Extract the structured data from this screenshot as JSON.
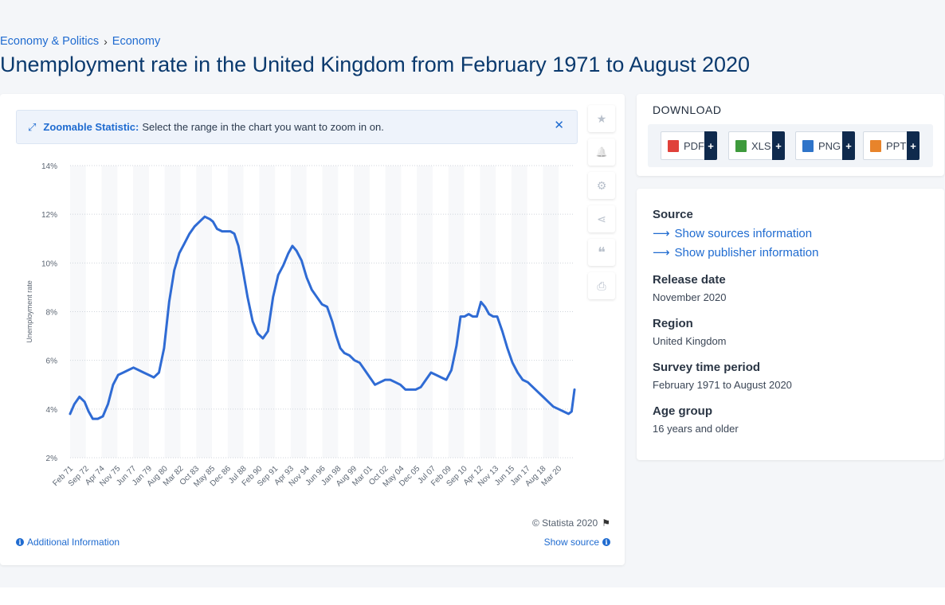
{
  "breadcrumb": {
    "item1": "Economy & Politics",
    "separator": "›",
    "item2": "Economy"
  },
  "page_title": "Unemployment rate in the United Kingdom from February 1971 to August 2020",
  "zoom_banner": {
    "label": "Zoomable Statistic:",
    "text": "Select the range in the chart you want to zoom in on.",
    "close": "✕"
  },
  "toolbar": {
    "icons": [
      "star-icon",
      "bell-icon",
      "gear-icon",
      "share-icon",
      "quote-icon",
      "print-icon"
    ],
    "glyphs": [
      "★",
      "🔔",
      "⚙",
      "⋖",
      "❝",
      "⎙"
    ]
  },
  "copyright": "© Statista 2020",
  "additional_info": "Additional Information",
  "show_source": "Show source",
  "download": {
    "title": "DOWNLOAD",
    "buttons": [
      {
        "label": "PDF",
        "color": "#e0413a"
      },
      {
        "label": "XLS",
        "color": "#3e9a3c"
      },
      {
        "label": "PNG",
        "color": "#2f74c9"
      },
      {
        "label": "PPT",
        "color": "#e8842b"
      }
    ],
    "plus": "+"
  },
  "info": {
    "source_label": "Source",
    "show_sources": "Show sources information",
    "show_publisher": "Show publisher information",
    "release_label": "Release date",
    "release_value": "November 2020",
    "region_label": "Region",
    "region_value": "United Kingdom",
    "period_label": "Survey time period",
    "period_value": "February 1971 to August 2020",
    "age_label": "Age group",
    "age_value": "16 years and older"
  },
  "chart_data": {
    "type": "line",
    "ylabel": "Unemployment rate",
    "xlabel": "",
    "ylim": [
      2,
      14
    ],
    "yticks": [
      "2%",
      "4%",
      "6%",
      "8%",
      "10%",
      "12%",
      "14%"
    ],
    "xlim": [
      1971.083,
      2020.583
    ],
    "xtick_labels": [
      "Feb 71",
      "Sep 72",
      "Apr 74",
      "Nov 75",
      "Jun 77",
      "Jan 79",
      "Aug 80",
      "Mar 82",
      "Oct 83",
      "May 85",
      "Dec 86",
      "Jul 88",
      "Feb 90",
      "Sep 91",
      "Apr 93",
      "Nov 94",
      "Jun 96",
      "Jan 98",
      "Aug 99",
      "Mar 01",
      "Oct 02",
      "May 04",
      "Dec 05",
      "Jul 07",
      "Feb 09",
      "Sep 10",
      "Apr 12",
      "Nov 13",
      "Jun 15",
      "Jan 17",
      "Aug 18",
      "Mar 20"
    ],
    "series_color": "#2f6bd4",
    "grid": "horizontal dotted",
    "x": [
      1971.08,
      1971.5,
      1972.0,
      1972.5,
      1972.9,
      1973.3,
      1973.8,
      1974.3,
      1974.8,
      1975.3,
      1975.8,
      1976.3,
      1976.8,
      1977.3,
      1977.8,
      1978.3,
      1978.8,
      1979.3,
      1979.8,
      1980.3,
      1980.8,
      1981.3,
      1981.8,
      1982.3,
      1982.8,
      1983.3,
      1983.8,
      1984.3,
      1984.8,
      1985.1,
      1985.5,
      1986.0,
      1986.5,
      1986.8,
      1987.2,
      1987.6,
      1988.0,
      1988.5,
      1989.0,
      1989.5,
      1990.0,
      1990.5,
      1991.0,
      1991.5,
      1992.0,
      1992.5,
      1992.9,
      1993.3,
      1993.8,
      1994.3,
      1994.8,
      1995.3,
      1995.8,
      1996.3,
      1996.8,
      1997.2,
      1997.6,
      1998.0,
      1998.5,
      1999.0,
      1999.5,
      2000.0,
      2000.5,
      2001.0,
      2001.5,
      2002.0,
      2002.5,
      2003.0,
      2003.5,
      2004.0,
      2004.5,
      2005.0,
      2005.5,
      2006.0,
      2006.5,
      2007.0,
      2007.5,
      2008.0,
      2008.5,
      2009.0,
      2009.4,
      2009.8,
      2010.2,
      2010.6,
      2011.0,
      2011.4,
      2011.8,
      2012.2,
      2012.6,
      2013.0,
      2013.5,
      2014.0,
      2014.5,
      2015.0,
      2015.5,
      2016.0,
      2016.5,
      2017.0,
      2017.5,
      2018.0,
      2018.5,
      2019.0,
      2019.5,
      2020.0,
      2020.3,
      2020.58
    ],
    "values": [
      3.8,
      4.2,
      4.5,
      4.3,
      3.9,
      3.6,
      3.6,
      3.7,
      4.2,
      5.0,
      5.4,
      5.5,
      5.6,
      5.7,
      5.6,
      5.5,
      5.4,
      5.3,
      5.5,
      6.5,
      8.4,
      9.7,
      10.4,
      10.8,
      11.2,
      11.5,
      11.7,
      11.9,
      11.8,
      11.7,
      11.4,
      11.3,
      11.3,
      11.3,
      11.2,
      10.7,
      9.8,
      8.6,
      7.6,
      7.1,
      6.9,
      7.2,
      8.6,
      9.5,
      9.9,
      10.4,
      10.7,
      10.5,
      10.1,
      9.4,
      8.9,
      8.6,
      8.3,
      8.2,
      7.6,
      7.0,
      6.5,
      6.3,
      6.2,
      6.0,
      5.9,
      5.6,
      5.3,
      5.0,
      5.1,
      5.2,
      5.2,
      5.1,
      5.0,
      4.8,
      4.8,
      4.8,
      4.9,
      5.2,
      5.5,
      5.4,
      5.3,
      5.2,
      5.6,
      6.6,
      7.8,
      7.8,
      7.9,
      7.8,
      7.8,
      8.4,
      8.2,
      7.9,
      7.8,
      7.8,
      7.2,
      6.5,
      5.9,
      5.5,
      5.2,
      5.1,
      4.9,
      4.7,
      4.5,
      4.3,
      4.1,
      4.0,
      3.9,
      3.8,
      3.9,
      4.8
    ]
  }
}
